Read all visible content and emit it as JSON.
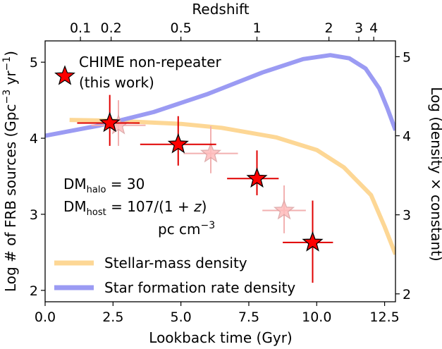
{
  "chart_data": {
    "type": "line",
    "x_axis": {
      "label": "Lookback time (Gyr)",
      "range": [
        0,
        12.9
      ],
      "ticks": [
        0,
        2.5,
        5,
        7.5,
        10,
        12.5
      ],
      "tick_labels": [
        "0.0",
        "2.5",
        "5.0",
        "7.5",
        "10.0",
        "12.5"
      ]
    },
    "top_axis": {
      "label": "Redshift",
      "ticks": [
        {
          "z": 0.1,
          "label": "0.1",
          "t": 1.3
        },
        {
          "z": 0.2,
          "label": "0.2",
          "t": 2.43
        },
        {
          "z": 0.5,
          "label": "0.5",
          "t": 5.0
        },
        {
          "z": 1,
          "label": "1",
          "t": 7.8
        },
        {
          "z": 2,
          "label": "2",
          "t": 10.45
        },
        {
          "z": 3,
          "label": "3",
          "t": 11.55
        },
        {
          "z": 4,
          "label": "4",
          "t": 12.1
        }
      ]
    },
    "y_left": {
      "label_prefix": "Log # of FRB sources (Gpc",
      "label_exp1": "−3",
      "label_mid": " yr",
      "label_exp2": "−1",
      "label_suffix": ")",
      "range": [
        1.85,
        5.28
      ],
      "ticks": [
        2,
        3,
        4,
        5
      ],
      "tick_labels": [
        "2",
        "3",
        "4",
        "5"
      ]
    },
    "y_right": {
      "label": "Log (density × constant)",
      "range": [
        1.9,
        5.2
      ],
      "ticks": [
        2,
        3,
        4,
        5
      ],
      "tick_labels": [
        "2",
        "3",
        "4",
        "5"
      ]
    },
    "series": [
      {
        "name": "Stellar-mass density",
        "color": "#fdd795",
        "x": [
          0.9,
          2.5,
          5.0,
          6.5,
          8.5,
          10.0,
          11.0,
          12.0,
          12.5,
          12.9
        ],
        "y": [
          4.2,
          4.19,
          4.15,
          4.1,
          3.98,
          3.82,
          3.6,
          3.25,
          2.85,
          2.5
        ]
      },
      {
        "name": "Star formation rate density",
        "color": "#9b9bf3",
        "x": [
          0,
          2,
          4,
          6,
          8,
          9.5,
          10.5,
          11.2,
          11.8,
          12.3,
          12.6,
          12.9
        ],
        "y": [
          4.0,
          4.13,
          4.3,
          4.53,
          4.8,
          4.97,
          5.02,
          4.98,
          4.85,
          4.6,
          4.35,
          4.07
        ]
      }
    ],
    "frb_points": [
      {
        "x": 2.38,
        "y": 4.2,
        "xerr_lo": 1.2,
        "xerr_hi": 1.1,
        "yerr_lo": 0.3,
        "yerr_hi": 0.37
      },
      {
        "x": 4.9,
        "y": 3.92,
        "xerr_lo": 1.4,
        "xerr_hi": 1.4,
        "yerr_lo": 0.28,
        "yerr_hi": 0.37
      },
      {
        "x": 7.8,
        "y": 3.47,
        "xerr_lo": 1.1,
        "xerr_hi": 0.8,
        "yerr_lo": 0.22,
        "yerr_hi": 0.37
      },
      {
        "x": 9.85,
        "y": 2.63,
        "xerr_lo": 1.1,
        "xerr_hi": 0.75,
        "yerr_lo": 0.53,
        "yerr_hi": 0.55
      }
    ],
    "faded_points": [
      {
        "x": 2.7,
        "y": 4.17,
        "xerr_lo": 1.0,
        "xerr_hi": 1.0,
        "yerr_lo": 0.27,
        "yerr_hi": 0.33
      },
      {
        "x": 6.1,
        "y": 3.8,
        "xerr_lo": 1.0,
        "xerr_hi": 1.0,
        "yerr_lo": 0.26,
        "yerr_hi": 0.36
      },
      {
        "x": 8.8,
        "y": 3.05,
        "xerr_lo": 0.8,
        "xerr_hi": 0.8,
        "yerr_lo": 0.3,
        "yerr_hi": 0.33
      }
    ],
    "legend": {
      "marker_label_line1": "CHIME non-repeater",
      "marker_label_line2": "(this work)",
      "stellar_label": "Stellar-mass density",
      "sfr_label": "Star formation rate density"
    },
    "annotation": {
      "dm_halo_prefix": "DM",
      "dm_halo_sub": "halo",
      "dm_halo_value": " = 30",
      "dm_host_prefix": "DM",
      "dm_host_sub": "host",
      "dm_host_value": " = 107/(1 + ",
      "dm_host_z": "z",
      "dm_host_close": ")",
      "units_prefix": "pc cm",
      "units_exp": "−3"
    },
    "colors": {
      "star_fill": "#ff0000",
      "star_faded": "#ffbcbc",
      "errbar": "#e00000",
      "errbar_faded": "#f2b0b0"
    }
  }
}
